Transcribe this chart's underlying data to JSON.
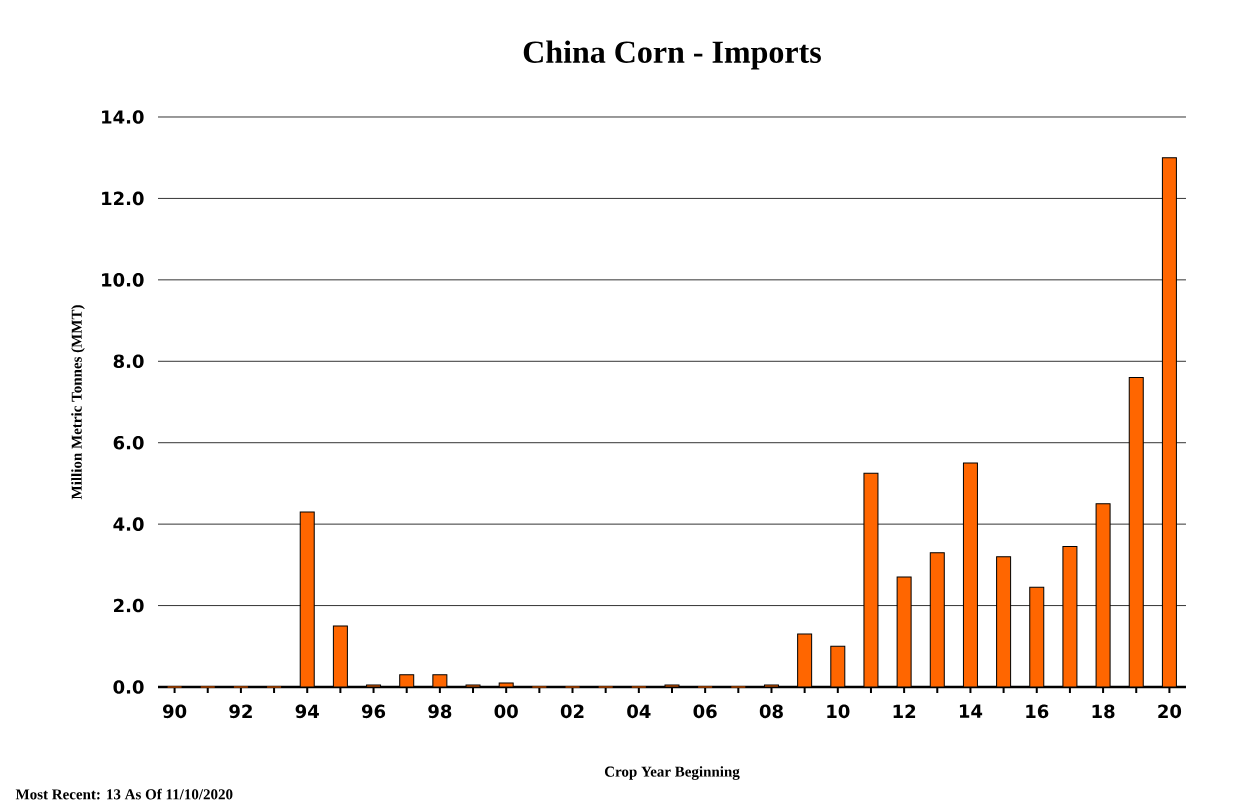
{
  "chart_data": {
    "type": "bar",
    "title": "China Corn - Imports",
    "xlabel": "Crop Year Beginning",
    "ylabel": "Million Metric Tonnes  (MMT)",
    "categories": [
      "90",
      null,
      "92",
      null,
      "94",
      null,
      "96",
      null,
      "98",
      null,
      "00",
      null,
      "02",
      null,
      "04",
      null,
      "06",
      null,
      "08",
      null,
      "10",
      null,
      "12",
      null,
      "14",
      null,
      "16",
      null,
      "18",
      null,
      "20"
    ],
    "values": [
      0,
      0,
      0,
      0,
      4.3,
      1.5,
      0.05,
      0.3,
      0.3,
      0.05,
      0.1,
      0,
      0,
      0,
      0,
      0.05,
      0,
      0,
      0.05,
      1.3,
      1.0,
      5.25,
      2.7,
      3.3,
      5.5,
      3.2,
      2.45,
      3.45,
      4.5,
      7.6,
      13.0
    ],
    "color": "#ff6600",
    "ylim": [
      0,
      14
    ],
    "yticks": [
      {
        "value": 0,
        "label": "0.0"
      },
      {
        "value": 2,
        "label": "2.0"
      },
      {
        "value": 4,
        "label": "4.0"
      },
      {
        "value": 6,
        "label": "6.0"
      },
      {
        "value": 8,
        "label": "8.0"
      },
      {
        "value": 10,
        "label": "10.0"
      },
      {
        "value": 12,
        "label": "12.0"
      },
      {
        "value": 14,
        "label": "14.0"
      }
    ],
    "grid": "y",
    "annotations": [
      "Most Recent: 13 As Of 11/10/2020"
    ]
  }
}
